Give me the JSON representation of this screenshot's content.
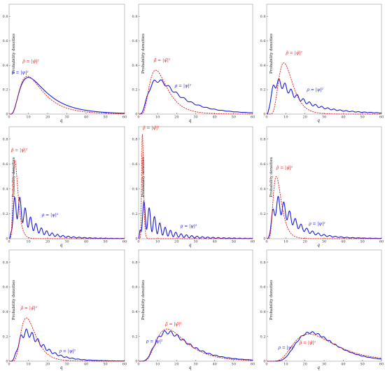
{
  "common": {
    "ylabel": "Probability densities",
    "xlabel": "q",
    "xlim": [
      0,
      60
    ],
    "ylim": [
      0,
      0.9
    ],
    "xticks": [
      0,
      10,
      20,
      30,
      40,
      50,
      60
    ],
    "yticks": [
      0,
      0.2,
      0.4,
      0.6,
      0.8
    ],
    "colors": {
      "blue": "#1a1adb",
      "red": "#e02020"
    },
    "label_blue": "ρ = |ψ|²",
    "label_red": "ρ̃ = |ψ̃|²"
  },
  "chart_data": [
    {
      "type": "line",
      "id": "p1",
      "xlabel": "q",
      "ylabel": "Probability densities",
      "series": [
        {
          "color": "blue",
          "style": "solid",
          "shape": "lognormal",
          "peak_x": 10,
          "peak_y": 0.3,
          "sigma": 0.65,
          "osc_amp": 0,
          "osc_period": 5
        },
        {
          "color": "red",
          "style": "dashed",
          "shape": "lognormal",
          "peak_x": 9.5,
          "peak_y": 0.31,
          "sigma": 0.6
        }
      ],
      "labels": [
        {
          "series": "blue",
          "x": 1.5,
          "y": 0.33
        },
        {
          "series": "red",
          "x": 7,
          "y": 0.42
        }
      ]
    },
    {
      "type": "line",
      "id": "p2",
      "xlabel": "q",
      "ylabel": "Probability densities",
      "series": [
        {
          "color": "blue",
          "style": "solid",
          "shape": "lognormal",
          "peak_x": 10,
          "peak_y": 0.29,
          "sigma": 0.7,
          "osc_amp": 0.03,
          "osc_period": 4
        },
        {
          "color": "red",
          "style": "dashed",
          "shape": "lognormal",
          "peak_x": 9,
          "peak_y": 0.36,
          "sigma": 0.5
        }
      ],
      "labels": [
        {
          "series": "blue",
          "x": 19,
          "y": 0.22
        },
        {
          "series": "red",
          "x": 8,
          "y": 0.43
        }
      ]
    },
    {
      "type": "line",
      "id": "p3",
      "xlabel": "q",
      "ylabel": "Probability densities",
      "series": [
        {
          "color": "blue",
          "style": "solid",
          "shape": "lognormal",
          "peak_x": 6,
          "peak_y": 0.29,
          "sigma": 0.9,
          "osc_amp": 0.07,
          "osc_period": 3.2
        },
        {
          "color": "red",
          "style": "dashed",
          "shape": "lognormal",
          "peak_x": 9,
          "peak_y": 0.42,
          "sigma": 0.4
        }
      ],
      "labels": [
        {
          "series": "blue",
          "x": 21,
          "y": 0.19
        },
        {
          "series": "red",
          "x": 10,
          "y": 0.49
        }
      ]
    },
    {
      "type": "line",
      "id": "p4",
      "xlabel": "q",
      "ylabel": "Probability densities",
      "series": [
        {
          "color": "blue",
          "style": "solid",
          "shape": "lognormal",
          "peak_x": 4,
          "peak_y": 0.36,
          "sigma": 0.85,
          "osc_amp": 0.2,
          "osc_period": 2.8
        },
        {
          "color": "red",
          "style": "dashed",
          "shape": "lognormal",
          "peak_x": 3,
          "peak_y": 0.63,
          "sigma": 0.42
        }
      ],
      "labels": [
        {
          "series": "blue",
          "x": 17,
          "y": 0.18
        },
        {
          "series": "red",
          "x": 1,
          "y": 0.7
        }
      ]
    },
    {
      "type": "line",
      "id": "p5",
      "xlabel": "q",
      "ylabel": "Probability densities",
      "series": [
        {
          "color": "blue",
          "style": "solid",
          "shape": "lognormal",
          "peak_x": 3,
          "peak_y": 0.3,
          "sigma": 1.0,
          "osc_amp": 0.22,
          "osc_period": 2.8
        },
        {
          "color": "red",
          "style": "dashed",
          "shape": "lognormal",
          "peak_x": 2,
          "peak_y": 0.84,
          "sigma": 0.25
        }
      ],
      "labels": [
        {
          "series": "blue",
          "x": 22,
          "y": 0.09
        },
        {
          "series": "red",
          "x": 2.2,
          "y": 0.88
        }
      ]
    },
    {
      "type": "line",
      "id": "p6",
      "xlabel": "q",
      "ylabel": "Probability densities",
      "series": [
        {
          "color": "blue",
          "style": "solid",
          "shape": "lognormal",
          "peak_x": 6,
          "peak_y": 0.34,
          "sigma": 0.75,
          "osc_amp": 0.14,
          "osc_period": 3
        },
        {
          "color": "red",
          "style": "dashed",
          "shape": "lognormal",
          "peak_x": 5,
          "peak_y": 0.5,
          "sigma": 0.42
        }
      ],
      "labels": [
        {
          "series": "blue",
          "x": 22,
          "y": 0.11
        },
        {
          "series": "red",
          "x": 5,
          "y": 0.56
        }
      ]
    },
    {
      "type": "line",
      "id": "p7",
      "xlabel": "q",
      "ylabel": "Probability densities",
      "series": [
        {
          "color": "blue",
          "style": "solid",
          "shape": "lognormal",
          "peak_x": 9,
          "peak_y": 0.26,
          "sigma": 0.6,
          "osc_amp": 0.06,
          "osc_period": 3
        },
        {
          "color": "red",
          "style": "dashed",
          "shape": "lognormal",
          "peak_x": 9,
          "peak_y": 0.35,
          "sigma": 0.42
        }
      ],
      "labels": [
        {
          "series": "blue",
          "x": 26,
          "y": 0.07
        },
        {
          "series": "red",
          "x": 6,
          "y": 0.42
        }
      ]
    },
    {
      "type": "line",
      "id": "p8",
      "xlabel": "q",
      "ylabel": "Probability densities",
      "series": [
        {
          "color": "blue",
          "style": "solid",
          "shape": "lognormal",
          "peak_x": 15,
          "peak_y": 0.25,
          "sigma": 0.55,
          "osc_amp": 0.03,
          "osc_period": 3.4
        },
        {
          "color": "red",
          "style": "dashed",
          "shape": "lognormal",
          "peak_x": 15,
          "peak_y": 0.26,
          "sigma": 0.5
        }
      ],
      "labels": [
        {
          "series": "blue",
          "x": 4,
          "y": 0.15
        },
        {
          "series": "red",
          "x": 14,
          "y": 0.29
        }
      ]
    },
    {
      "type": "line",
      "id": "p9",
      "xlabel": "q",
      "ylabel": "Probability densities",
      "series": [
        {
          "color": "blue",
          "style": "solid",
          "shape": "lognormal",
          "peak_x": 23,
          "peak_y": 0.24,
          "sigma": 0.42,
          "osc_amp": 0.015,
          "osc_period": 3
        },
        {
          "color": "red",
          "style": "dashed",
          "shape": "lognormal",
          "peak_x": 22,
          "peak_y": 0.22,
          "sigma": 0.48
        }
      ],
      "labels": [
        {
          "series": "blue",
          "x": 6,
          "y": 0.1
        },
        {
          "series": "red",
          "x": 17,
          "y": 0.14
        }
      ]
    }
  ]
}
